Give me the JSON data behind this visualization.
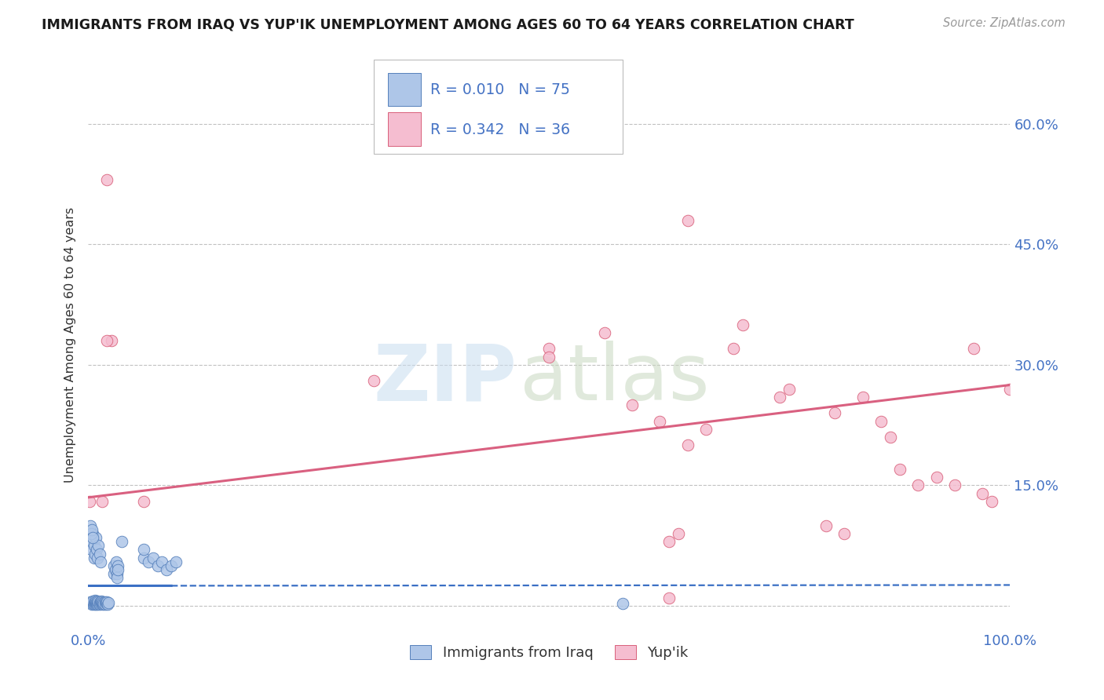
{
  "title": "IMMIGRANTS FROM IRAQ VS YUP'IK UNEMPLOYMENT AMONG AGES 60 TO 64 YEARS CORRELATION CHART",
  "source": "Source: ZipAtlas.com",
  "ylabel": "Unemployment Among Ages 60 to 64 years",
  "yticks": [
    0.0,
    0.15,
    0.3,
    0.45,
    0.6
  ],
  "ytick_labels_right": [
    "",
    "15.0%",
    "30.0%",
    "45.0%",
    "60.0%"
  ],
  "xmin": 0.0,
  "xmax": 1.0,
  "ymin": -0.03,
  "ymax": 0.68,
  "series1_label": "Immigrants from Iraq",
  "series1_R": "0.010",
  "series1_N": "75",
  "series1_color": "#aec6e8",
  "series1_edge_color": "#5580bb",
  "series2_label": "Yup'ik",
  "series2_R": "0.342",
  "series2_N": "36",
  "series2_color": "#f5bdd0",
  "series2_edge_color": "#d9607a",
  "series1_line_color": "#3a6fc4",
  "series2_line_color": "#d96080",
  "grid_color": "#bbbbbb",
  "legend_text_color": "#4472c4",
  "watermark_zip_color": "#c8ddf0",
  "watermark_atlas_color": "#c8d8c0",
  "iraq_x": [
    0.002,
    0.003,
    0.004,
    0.004,
    0.005,
    0.005,
    0.005,
    0.006,
    0.006,
    0.007,
    0.007,
    0.007,
    0.008,
    0.008,
    0.008,
    0.009,
    0.009,
    0.01,
    0.01,
    0.01,
    0.011,
    0.011,
    0.012,
    0.012,
    0.013,
    0.013,
    0.014,
    0.014,
    0.015,
    0.015,
    0.016,
    0.016,
    0.017,
    0.018,
    0.018,
    0.019,
    0.02,
    0.02,
    0.021,
    0.022,
    0.003,
    0.004,
    0.005,
    0.006,
    0.006,
    0.007,
    0.008,
    0.009,
    0.01,
    0.011,
    0.012,
    0.013,
    0.028,
    0.028,
    0.029,
    0.03,
    0.031,
    0.031,
    0.032,
    0.032,
    0.036,
    0.06,
    0.06,
    0.065,
    0.07,
    0.075,
    0.08,
    0.085,
    0.09,
    0.095,
    0.002,
    0.003,
    0.004,
    0.005,
    0.58
  ],
  "iraq_y": [
    0.005,
    0.003,
    0.004,
    0.002,
    0.003,
    0.005,
    0.006,
    0.004,
    0.002,
    0.003,
    0.005,
    0.007,
    0.002,
    0.004,
    0.006,
    0.003,
    0.005,
    0.004,
    0.002,
    0.006,
    0.003,
    0.005,
    0.004,
    0.002,
    0.005,
    0.003,
    0.004,
    0.006,
    0.003,
    0.005,
    0.002,
    0.004,
    0.003,
    0.005,
    0.002,
    0.004,
    0.003,
    0.005,
    0.002,
    0.004,
    0.07,
    0.08,
    0.09,
    0.06,
    0.075,
    0.065,
    0.085,
    0.07,
    0.06,
    0.075,
    0.065,
    0.055,
    0.04,
    0.05,
    0.045,
    0.055,
    0.04,
    0.035,
    0.05,
    0.045,
    0.08,
    0.06,
    0.07,
    0.055,
    0.06,
    0.05,
    0.055,
    0.045,
    0.05,
    0.055,
    0.1,
    0.09,
    0.095,
    0.085,
    0.003
  ],
  "yupik_x": [
    0.015,
    0.02,
    0.025,
    0.02,
    0.06,
    0.31,
    0.5,
    0.5,
    0.56,
    0.59,
    0.62,
    0.65,
    0.71,
    0.75,
    0.76,
    0.81,
    0.84,
    0.86,
    0.87,
    0.88,
    0.9,
    0.92,
    0.94,
    0.96,
    0.97,
    0.98,
    1.0,
    0.65,
    0.67,
    0.7,
    0.8,
    0.82,
    0.001,
    0.63,
    0.63,
    0.64
  ],
  "yupik_y": [
    0.13,
    0.53,
    0.33,
    0.33,
    0.13,
    0.28,
    0.32,
    0.31,
    0.34,
    0.25,
    0.23,
    0.2,
    0.35,
    0.26,
    0.27,
    0.24,
    0.26,
    0.23,
    0.21,
    0.17,
    0.15,
    0.16,
    0.15,
    0.32,
    0.14,
    0.13,
    0.27,
    0.48,
    0.22,
    0.32,
    0.1,
    0.09,
    0.13,
    0.01,
    0.08,
    0.09
  ],
  "iraq_trend_x0": 0.0,
  "iraq_trend_x1": 1.0,
  "iraq_trend_y0": 0.025,
  "iraq_trend_y1": 0.026,
  "iraq_trend_solid_end": 0.09,
  "yupik_trend_x0": 0.0,
  "yupik_trend_x1": 1.0,
  "yupik_trend_y0": 0.135,
  "yupik_trend_y1": 0.275
}
